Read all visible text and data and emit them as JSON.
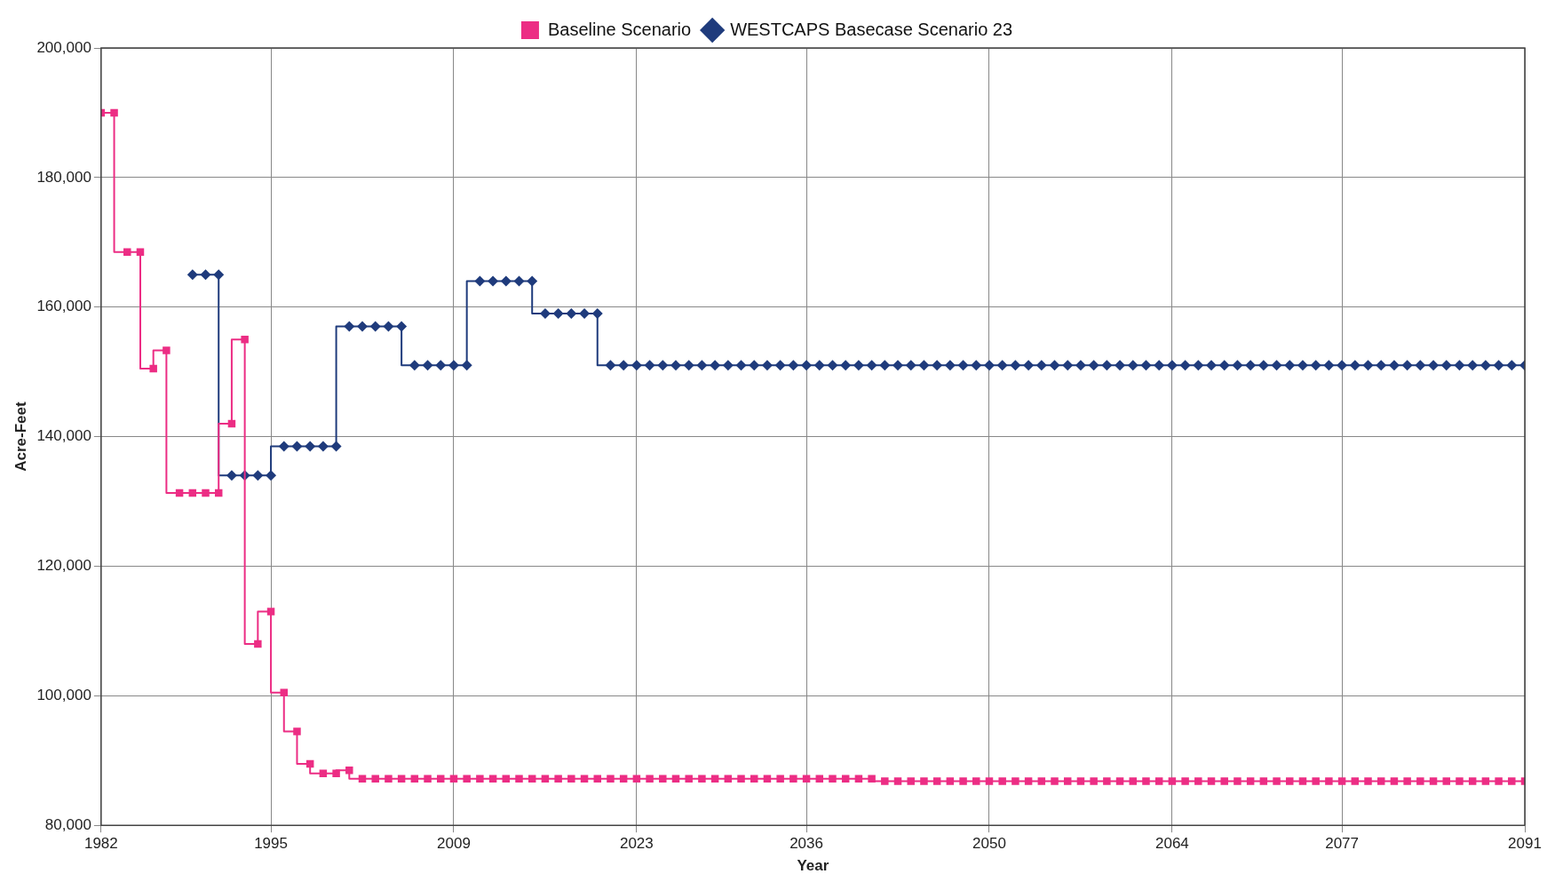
{
  "chart_data": {
    "type": "step",
    "xlabel": "Year",
    "ylabel": "Acre-Feet",
    "x": [
      1982,
      1983,
      1984,
      1985,
      1986,
      1987,
      1988,
      1989,
      1990,
      1991,
      1992,
      1993,
      1994,
      1995,
      1996,
      1997,
      1998,
      1999,
      2000,
      2001,
      2002,
      2003,
      2004,
      2005,
      2006,
      2007,
      2008,
      2009,
      2010,
      2011,
      2012,
      2013,
      2014,
      2015,
      2016,
      2017,
      2018,
      2019,
      2020,
      2021,
      2022,
      2023,
      2024,
      2025,
      2026,
      2027,
      2028,
      2029,
      2030,
      2031,
      2032,
      2033,
      2034,
      2035,
      2036,
      2037,
      2038,
      2039,
      2040,
      2041,
      2042,
      2043,
      2044,
      2045,
      2046,
      2047,
      2048,
      2049,
      2050,
      2051,
      2052,
      2053,
      2054,
      2055,
      2056,
      2057,
      2058,
      2059,
      2060,
      2061,
      2062,
      2063,
      2064,
      2065,
      2066,
      2067,
      2068,
      2069,
      2070,
      2071,
      2072,
      2073,
      2074,
      2075,
      2076,
      2077,
      2078,
      2079,
      2080,
      2081,
      2082,
      2083,
      2084,
      2085,
      2086,
      2087,
      2088,
      2089,
      2090,
      2091
    ],
    "series": [
      {
        "name": "Baseline Scenario",
        "color": "#ec2d84",
        "marker": "square",
        "values": [
          190000,
          190000,
          168500,
          168500,
          150500,
          153300,
          131300,
          131300,
          131300,
          131300,
          142000,
          155000,
          108000,
          113000,
          100500,
          94500,
          89500,
          88000,
          88000,
          88500,
          87200,
          87200,
          87200,
          87200,
          87200,
          87200,
          87200,
          87200,
          87200,
          87200,
          87200,
          87200,
          87200,
          87200,
          87200,
          87200,
          87200,
          87200,
          87200,
          87200,
          87200,
          87200,
          87200,
          87200,
          87200,
          87200,
          87200,
          87200,
          87200,
          87200,
          87200,
          87200,
          87200,
          87200,
          87200,
          87200,
          87200,
          87200,
          87200,
          87200,
          86800,
          86800,
          86800,
          86800,
          86800,
          86800,
          86800,
          86800,
          86800,
          86800,
          86800,
          86800,
          86800,
          86800,
          86800,
          86800,
          86800,
          86800,
          86800,
          86800,
          86800,
          86800,
          86800,
          86800,
          86800,
          86800,
          86800,
          86800,
          86800,
          86800,
          86800,
          86800,
          86800,
          86800,
          86800,
          86800,
          86800,
          86800,
          86800,
          86800,
          86800,
          86800,
          86800,
          86800,
          86800,
          86800,
          86800,
          86800,
          86800,
          86800
        ]
      },
      {
        "name": "WESTCAPS Basecase Scenario 23",
        "color": "#1f3b7c",
        "marker": "diamond",
        "values": [
          null,
          null,
          null,
          null,
          null,
          null,
          null,
          165000,
          165000,
          165000,
          134000,
          134000,
          134000,
          134000,
          138500,
          138500,
          138500,
          138500,
          138500,
          157000,
          157000,
          157000,
          157000,
          157000,
          151000,
          151000,
          151000,
          151000,
          151000,
          164000,
          164000,
          164000,
          164000,
          164000,
          159000,
          159000,
          159000,
          159000,
          159000,
          151000,
          151000,
          151000,
          151000,
          151000,
          151000,
          151000,
          151000,
          151000,
          151000,
          151000,
          151000,
          151000,
          151000,
          151000,
          151000,
          151000,
          151000,
          151000,
          151000,
          151000,
          151000,
          151000,
          151000,
          151000,
          151000,
          151000,
          151000,
          151000,
          151000,
          151000,
          151000,
          151000,
          151000,
          151000,
          151000,
          151000,
          151000,
          151000,
          151000,
          151000,
          151000,
          151000,
          151000,
          151000,
          151000,
          151000,
          151000,
          151000,
          151000,
          151000,
          151000,
          151000,
          151000,
          151000,
          151000,
          151000,
          151000,
          151000,
          151000,
          151000,
          151000,
          151000,
          151000,
          151000,
          151000,
          151000,
          151000,
          151000,
          151000,
          151000
        ]
      }
    ],
    "xlim": [
      1982,
      2091
    ],
    "xticks": [
      1982,
      1995,
      2009,
      2023,
      2036,
      2050,
      2064,
      2077,
      2091
    ],
    "ylim": [
      80000,
      200000
    ],
    "yticks": [
      {
        "value": 80000,
        "label": "80,000"
      },
      {
        "value": 100000,
        "label": "100,000"
      },
      {
        "value": 120000,
        "label": "120,000"
      },
      {
        "value": 140000,
        "label": "140,000"
      },
      {
        "value": 160000,
        "label": "160,000"
      },
      {
        "value": 180000,
        "label": "180,000"
      },
      {
        "value": 200000,
        "label": "200,000"
      }
    ],
    "grid": true,
    "legend": "top"
  }
}
